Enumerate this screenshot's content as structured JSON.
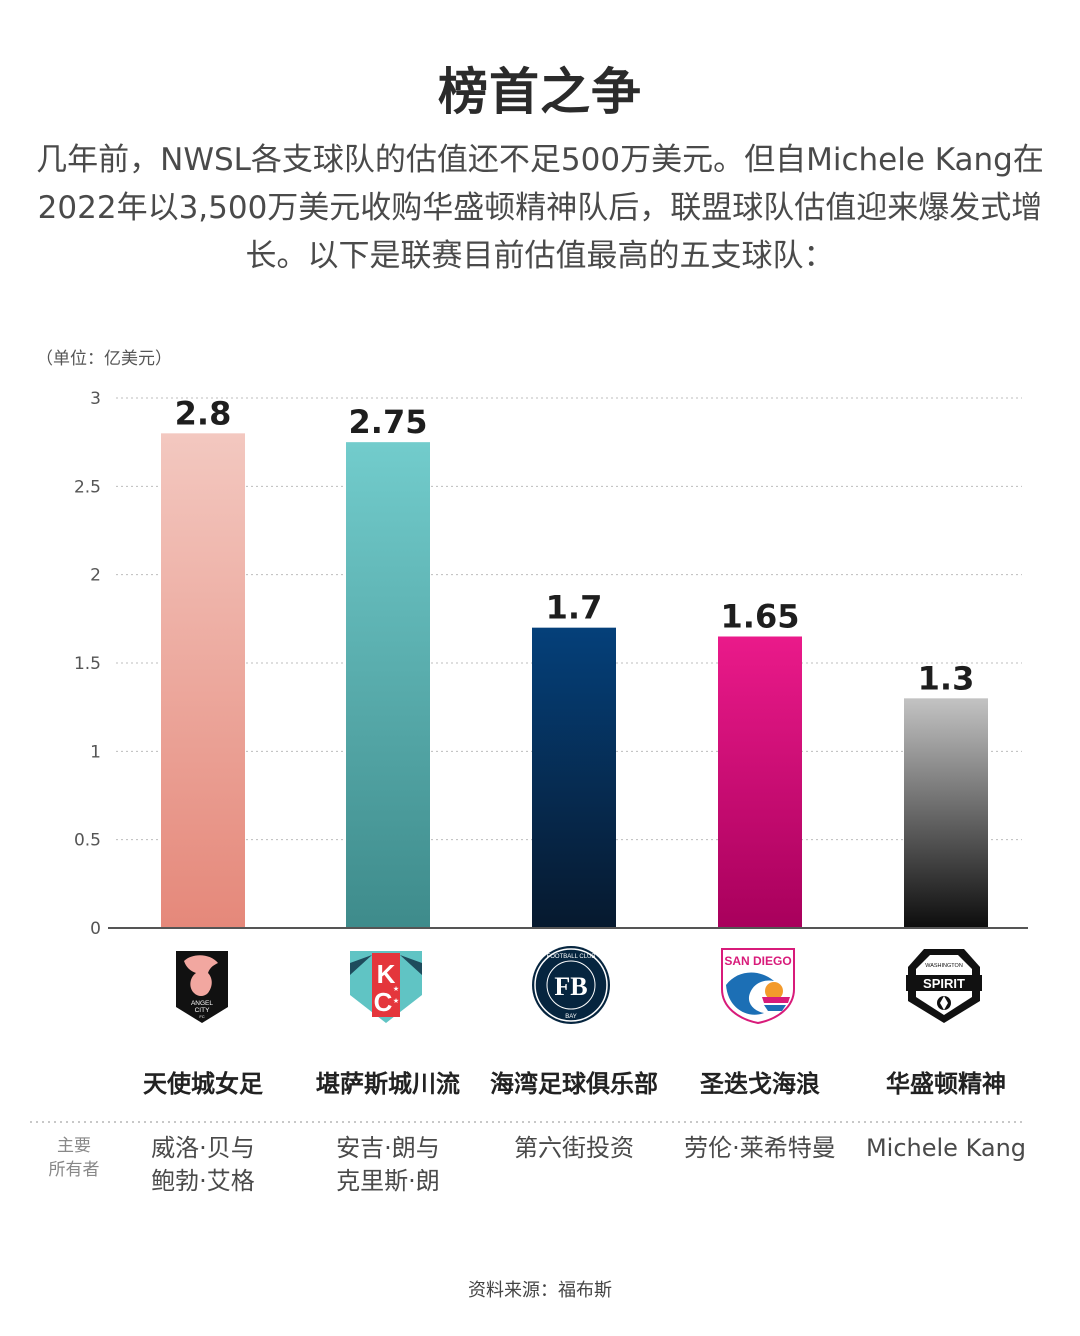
{
  "title": "榜首之争",
  "subtitle": "几年前，NWSL各支球队的估值还不足500万美元。但自Michele Kang在2022年以3,500万美元收购华盛顿精神队后，联盟球队估值迎来爆发式增长。以下是联赛目前估值最高的五支球队：",
  "unit_label": "（单位：亿美元）",
  "owner_label": [
    "主要",
    "所有者"
  ],
  "source": "资料来源：福布斯",
  "chart_data": {
    "type": "bar",
    "categories": [
      "天使城女足",
      "堪萨斯城川流",
      "海湾足球俱乐部",
      "圣迭戈海浪",
      "华盛顿精神"
    ],
    "values": [
      2.8,
      2.75,
      1.7,
      1.65,
      1.3
    ],
    "value_labels": [
      "2.8",
      "2.75",
      "1.7",
      "1.65",
      "1.3"
    ],
    "ylim": [
      0,
      3
    ],
    "yticks": [
      0,
      0.5,
      1,
      1.5,
      2,
      2.5,
      3
    ],
    "ytick_labels": [
      "0",
      "0.5",
      "1",
      "1.5",
      "2",
      "2.5",
      "3"
    ],
    "grid": true,
    "bar_gradients": [
      [
        "#f3c8c0",
        "#e5887a"
      ],
      [
        "#72cccc",
        "#3e8b8b"
      ],
      [
        "#05407a",
        "#06192e"
      ],
      [
        "#ea1a8a",
        "#a8005c"
      ],
      [
        "#c3c3c3",
        "#0d0d0d"
      ]
    ]
  },
  "teams": [
    {
      "name": "天使城女足",
      "owner": "威洛·贝与\n鲍勃·艾格",
      "logo": "angel-city-fc-logo",
      "logo_text": [
        "ANGEL",
        "CITY",
        "FC"
      ]
    },
    {
      "name": "堪萨斯城川流",
      "owner": "安吉·朗与\n克里斯·朗",
      "logo": "kansas-city-current-logo",
      "logo_text": [
        "K",
        "C"
      ]
    },
    {
      "name": "海湾足球俱乐部",
      "owner": "第六街投资",
      "logo": "bay-fc-logo",
      "logo_text": [
        "FOOTBALL CLUB",
        "BAY",
        "FB"
      ]
    },
    {
      "name": "圣迭戈海浪",
      "owner": "劳伦·莱希特曼",
      "logo": "san-diego-wave-logo",
      "logo_text": [
        "SAN DIEGO"
      ]
    },
    {
      "name": "华盛顿精神",
      "owner": "Michele Kang",
      "logo": "washington-spirit-logo",
      "logo_text": [
        "WASHINGTON",
        "SPIRIT"
      ]
    }
  ]
}
